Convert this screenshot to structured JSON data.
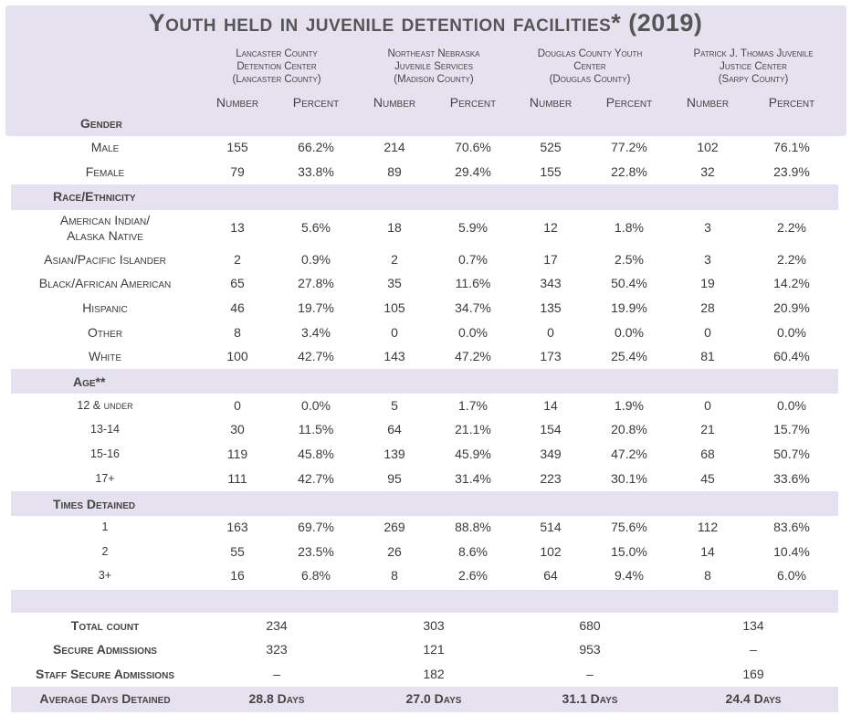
{
  "title": "Youth held in juvenile detention facilities* (2019)",
  "facilities": [
    {
      "name_lines": [
        "Lancaster County",
        "Detention Center",
        "(Lancaster County)"
      ]
    },
    {
      "name_lines": [
        "Northeast Nebraska",
        "Juvenile Services",
        "(Madison County)"
      ]
    },
    {
      "name_lines": [
        "Douglas County Youth",
        "Center",
        "(Douglas County)"
      ]
    },
    {
      "name_lines": [
        "Patrick J. Thomas Juvenile",
        "Justice Center",
        "(Sarpy County)"
      ]
    }
  ],
  "column_labels": {
    "number": "Number",
    "percent": "Percent"
  },
  "sections": [
    {
      "label": "Gender",
      "rows": [
        {
          "label": "Male",
          "values": [
            "155",
            "66.2%",
            "214",
            "70.6%",
            "525",
            "77.2%",
            "102",
            "76.1%"
          ]
        },
        {
          "label": "Female",
          "values": [
            "79",
            "33.8%",
            "89",
            "29.4%",
            "155",
            "22.8%",
            "32",
            "23.9%"
          ]
        }
      ]
    },
    {
      "label": "Race/Ethnicity",
      "rows": [
        {
          "label": "American Indian/ Alaska Native",
          "values": [
            "13",
            "5.6%",
            "18",
            "5.9%",
            "12",
            "1.8%",
            "3",
            "2.2%"
          ]
        },
        {
          "label": "Asian/Pacific Islander",
          "values": [
            "2",
            "0.9%",
            "2",
            "0.7%",
            "17",
            "2.5%",
            "3",
            "2.2%"
          ]
        },
        {
          "label": "Black/African American",
          "values": [
            "65",
            "27.8%",
            "35",
            "11.6%",
            "343",
            "50.4%",
            "19",
            "14.2%"
          ]
        },
        {
          "label": "Hispanic",
          "values": [
            "46",
            "19.7%",
            "105",
            "34.7%",
            "135",
            "19.9%",
            "28",
            "20.9%"
          ]
        },
        {
          "label": "Other",
          "values": [
            "8",
            "3.4%",
            "0",
            "0.0%",
            "0",
            "0.0%",
            "0",
            "0.0%"
          ]
        },
        {
          "label": "White",
          "values": [
            "100",
            "42.7%",
            "143",
            "47.2%",
            "173",
            "25.4%",
            "81",
            "60.4%"
          ]
        }
      ]
    },
    {
      "label": "Age**",
      "rows": [
        {
          "label": "12 & under",
          "values": [
            "0",
            "0.0%",
            "5",
            "1.7%",
            "14",
            "1.9%",
            "0",
            "0.0%"
          ]
        },
        {
          "label": "13-14",
          "values": [
            "30",
            "11.5%",
            "64",
            "21.1%",
            "154",
            "20.8%",
            "21",
            "15.7%"
          ]
        },
        {
          "label": "15-16",
          "values": [
            "119",
            "45.8%",
            "139",
            "45.9%",
            "349",
            "47.2%",
            "68",
            "50.7%"
          ]
        },
        {
          "label": "17+",
          "values": [
            "111",
            "42.7%",
            "95",
            "31.4%",
            "223",
            "30.1%",
            "45",
            "33.6%"
          ]
        }
      ]
    },
    {
      "label": "Times Detained",
      "rows": [
        {
          "label": "1",
          "values": [
            "163",
            "69.7%",
            "269",
            "88.8%",
            "514",
            "75.6%",
            "112",
            "83.6%"
          ]
        },
        {
          "label": "2",
          "values": [
            "55",
            "23.5%",
            "26",
            "8.6%",
            "102",
            "15.0%",
            "14",
            "10.4%"
          ]
        },
        {
          "label": "3+",
          "values": [
            "16",
            "6.8%",
            "8",
            "2.6%",
            "64",
            "9.4%",
            "8",
            "6.0%"
          ]
        }
      ]
    }
  ],
  "totals": [
    {
      "label": "Total count",
      "values": [
        "234",
        "303",
        "680",
        "134"
      ]
    },
    {
      "label": "Secure Admissions",
      "values": [
        "323",
        "121",
        "953",
        "–"
      ]
    },
    {
      "label": "Staff Secure Admissions",
      "values": [
        "–",
        "182",
        "–",
        "169"
      ]
    },
    {
      "label": "Average Days Detained",
      "values": [
        "28.8 Days",
        "27.0 Days",
        "31.1 Days",
        "24.4 Days"
      ]
    }
  ]
}
